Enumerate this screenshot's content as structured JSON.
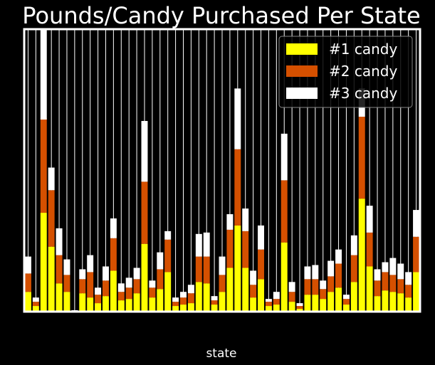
{
  "chart_data": {
    "type": "bar",
    "stacked": true,
    "title": "Pounds/Candy Purchased Per State",
    "xlabel": "state",
    "ylabel": "",
    "ylim": [
      0,
      100
    ],
    "grid": true,
    "legend_position": "top-right",
    "categories": [
      "",
      "",
      "",
      "",
      "",
      "",
      "",
      "",
      "",
      "",
      "",
      "",
      "",
      "",
      "",
      "",
      "",
      "",
      "",
      "",
      "",
      "",
      "",
      "",
      "",
      "",
      "",
      "",
      "",
      "",
      "",
      "",
      "",
      "",
      "",
      "",
      "",
      "",
      "",
      "",
      "",
      "",
      "",
      "",
      "",
      "",
      "",
      "",
      "",
      "",
      ""
    ],
    "series": [
      {
        "name": "#1 candy",
        "color": "#ffff00",
        "values": [
          7,
          2,
          35,
          23,
          10,
          7,
          0,
          6.5,
          5,
          3,
          5.5,
          14.5,
          4,
          4.5,
          6.5,
          24,
          5,
          8,
          14,
          2,
          2.5,
          3,
          10.5,
          10,
          2.5,
          7,
          15.5,
          30.5,
          15.5,
          5,
          11.5,
          2,
          2.5,
          24.5,
          3.5,
          1,
          6,
          6,
          4.5,
          7,
          8.5,
          2.5,
          10.5,
          40,
          16,
          5.5,
          7.5,
          7,
          6.5,
          5,
          14
        ]
      },
      {
        "name": "#2 candy",
        "color": "#d55000",
        "values": [
          6.5,
          1.5,
          33.5,
          20,
          10,
          6,
          0,
          5,
          9,
          3,
          5.5,
          11.5,
          3,
          4,
          5,
          22,
          3.5,
          7,
          11.5,
          1.5,
          2.5,
          3.5,
          9,
          9.5,
          1.5,
          6,
          13.5,
          27,
          13,
          4.5,
          10.5,
          1.5,
          2,
          22,
          3.5,
          1,
          5.5,
          5.5,
          3.5,
          5.5,
          8.5,
          2,
          9.5,
          29,
          12,
          5.5,
          6.5,
          6,
          5,
          4.5,
          12.5
        ]
      },
      {
        "name": "#3 candy",
        "color": "#ffffff",
        "values": [
          6,
          1.5,
          32,
          8,
          9.5,
          5.5,
          0.5,
          3.5,
          6,
          2.5,
          5,
          7,
          3,
          3.5,
          4,
          21.5,
          2.5,
          6,
          3,
          1.5,
          2,
          3,
          8,
          8.5,
          1.5,
          6.5,
          5.5,
          21.5,
          8,
          5,
          8.5,
          1,
          2.5,
          16.5,
          3.5,
          1,
          4.5,
          5,
          3,
          5.5,
          5,
          1.5,
          7,
          10,
          9.5,
          4,
          3.5,
          6,
          5.5,
          4.5,
          9.5
        ]
      }
    ]
  }
}
